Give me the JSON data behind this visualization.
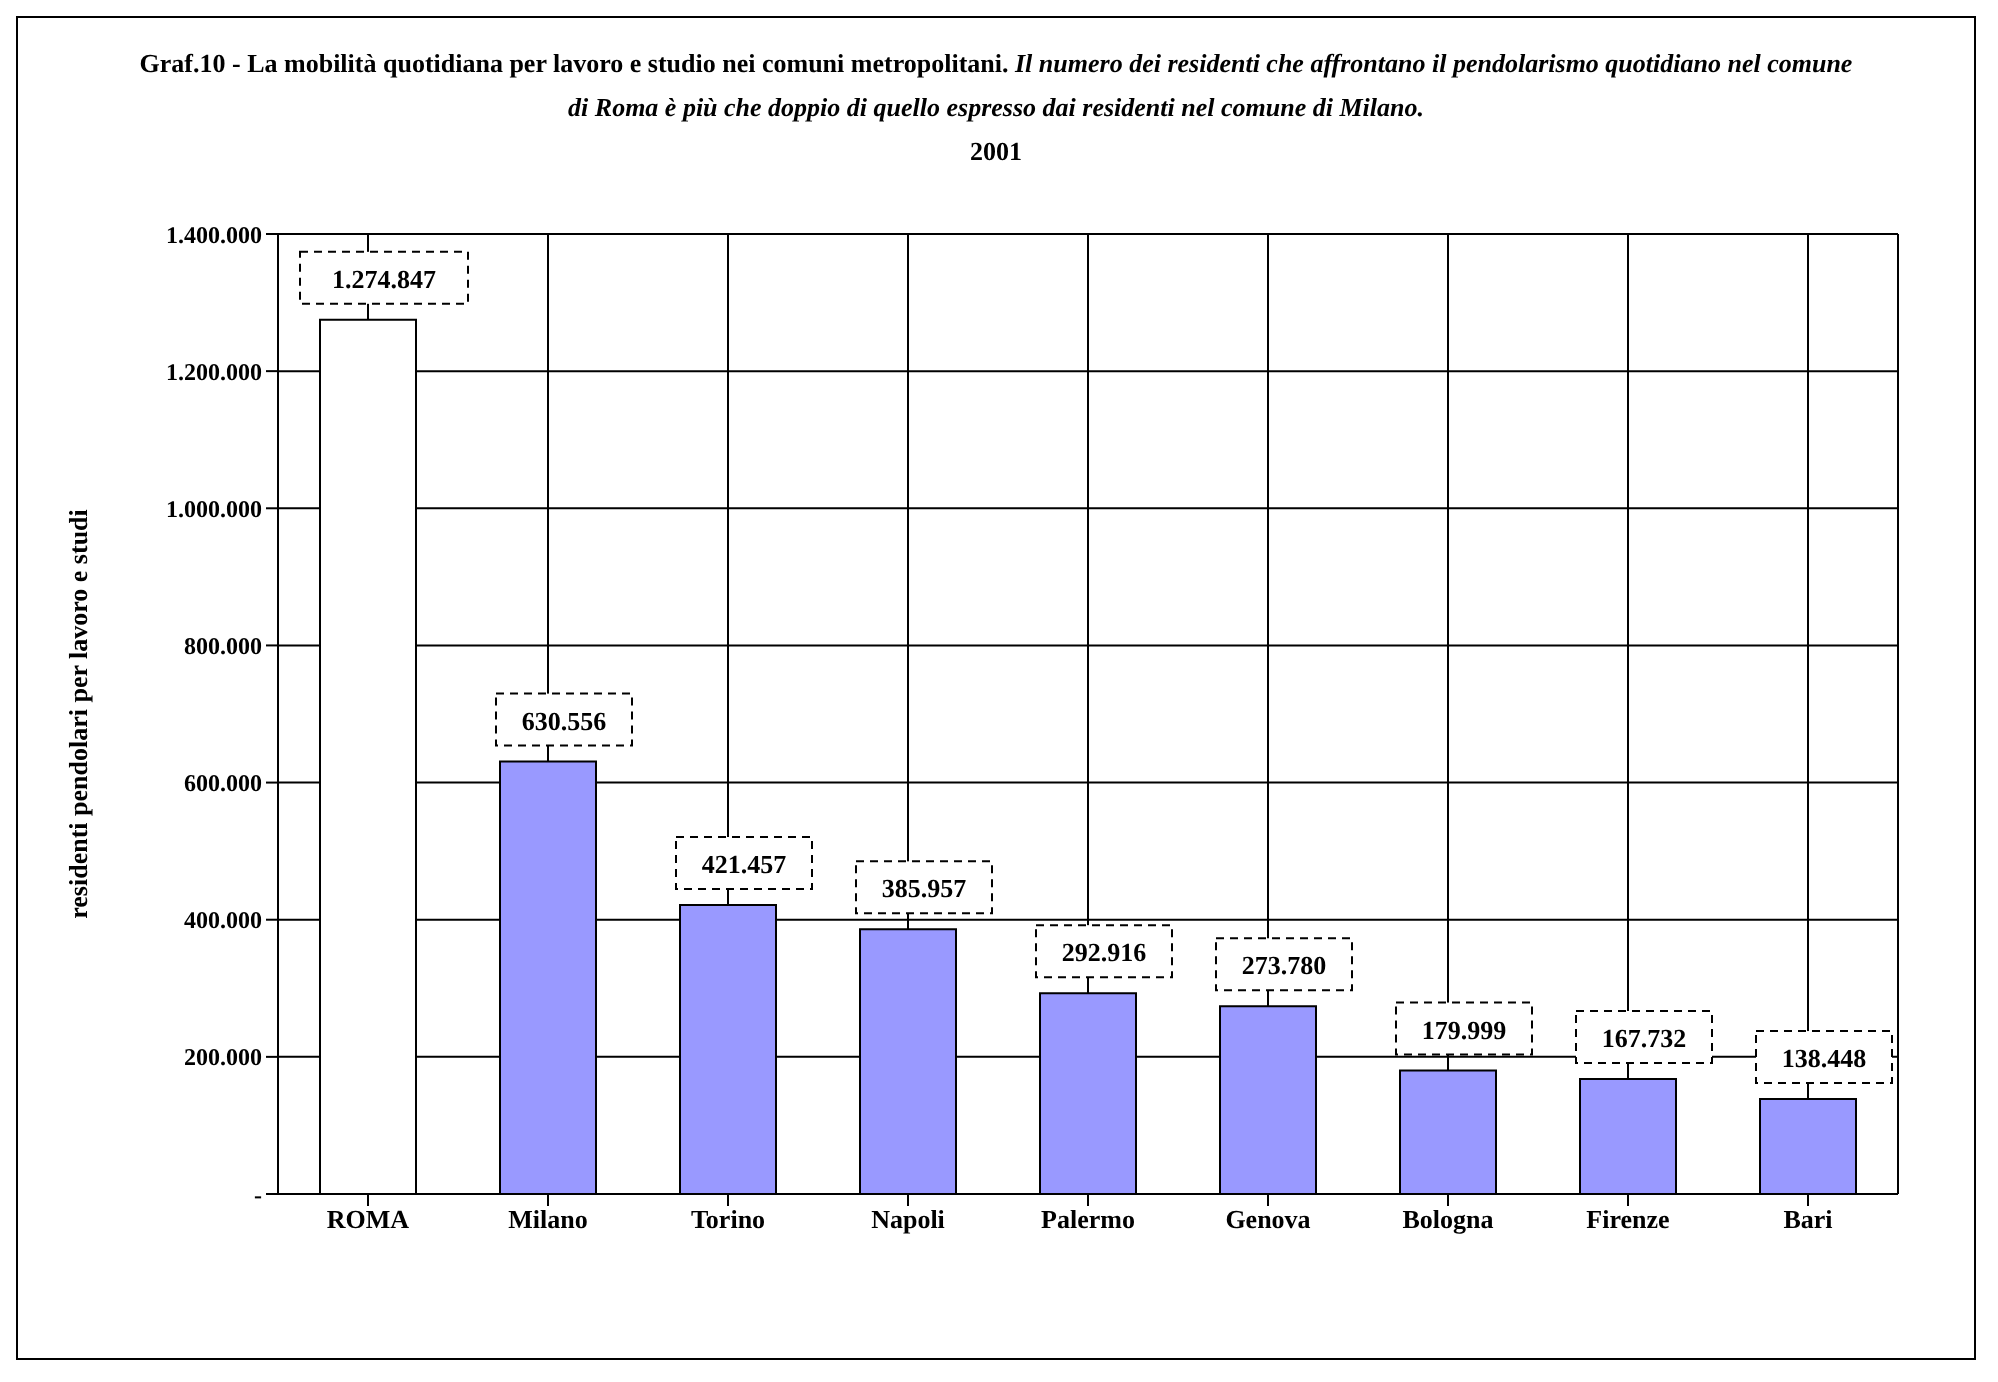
{
  "chart_data": {
    "type": "bar",
    "title": "Graf.10 - La mobilità quotidiana per lavoro e studio nei comuni metropolitani.",
    "subtitle": "Il numero dei residenti che affrontano il pendolarismo quotidiano nel comune di Roma  è più che doppio di quello espresso dai residenti nel comune di  Milano.",
    "annotations": [
      "2001"
    ],
    "ylabel": "residenti pendolari per lavoro e studi",
    "categories": [
      "ROMA",
      "Milano",
      "Torino",
      "Napoli",
      "Palermo",
      "Genova",
      "Bologna",
      "Firenze",
      "Bari"
    ],
    "values": [
      1274847,
      630556,
      421457,
      385957,
      292916,
      273780,
      179999,
      167732,
      138448
    ],
    "colors": [
      "#ffffff",
      "#9999ff",
      "#9999ff",
      "#9999ff",
      "#9999ff",
      "#9999ff",
      "#9999ff",
      "#9999ff",
      "#9999ff"
    ],
    "value_labels": [
      "1.274.847",
      "630.556",
      "421.457",
      "385.957",
      "292.916",
      "273.780",
      "179.999",
      "167.732",
      "138.448"
    ],
    "ylim": [
      0,
      1400000
    ],
    "yticks": [
      {
        "value": 0,
        "label": "-"
      },
      {
        "value": 200000,
        "label": "200.000"
      },
      {
        "value": 400000,
        "label": "400.000"
      },
      {
        "value": 600000,
        "label": "600.000"
      },
      {
        "value": 800000,
        "label": "800.000"
      },
      {
        "value": 1000000,
        "label": "1.000.000"
      },
      {
        "value": 1200000,
        "label": "1.200.000"
      },
      {
        "value": 1400000,
        "label": "1.400.000"
      }
    ],
    "grid": true
  }
}
